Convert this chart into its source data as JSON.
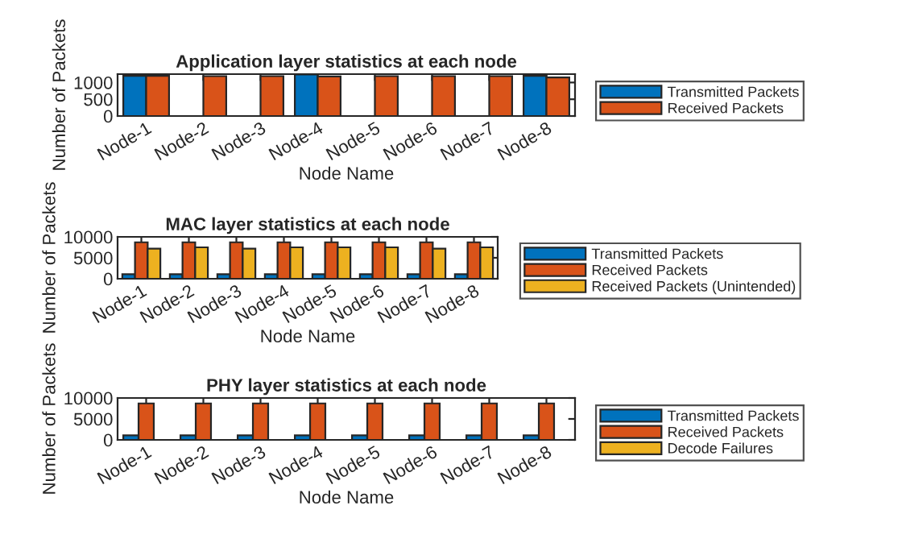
{
  "chart_data": [
    {
      "type": "bar",
      "title": "Application layer statistics at each node",
      "xlabel": "Node Name",
      "ylabel": "Number of Packets",
      "categories": [
        "Node-1",
        "Node-2",
        "Node-3",
        "Node-4",
        "Node-5",
        "Node-6",
        "Node-7",
        "Node-8"
      ],
      "ylim": [
        0,
        1250
      ],
      "yticks": [
        0,
        500,
        1000
      ],
      "legend": "right",
      "grid": false,
      "series": [
        {
          "name": "Transmitted Packets",
          "color": "#0072bd",
          "values": [
            1200,
            null,
            null,
            1240,
            null,
            null,
            null,
            1200
          ]
        },
        {
          "name": "Received Packets",
          "color": "#d95319",
          "values": [
            1200,
            1190,
            1190,
            1180,
            1190,
            1190,
            1190,
            1150
          ]
        }
      ]
    },
    {
      "type": "bar",
      "title": "MAC layer statistics at each node",
      "xlabel": "Node Name",
      "ylabel": "Number of Packets",
      "categories": [
        "Node-1",
        "Node-2",
        "Node-3",
        "Node-4",
        "Node-5",
        "Node-6",
        "Node-7",
        "Node-8"
      ],
      "ylim": [
        0,
        10000
      ],
      "yticks": [
        0,
        5000,
        10000
      ],
      "legend": "right",
      "grid": false,
      "series": [
        {
          "name": "Transmitted Packets",
          "color": "#0072bd",
          "values": [
            1100,
            1100,
            1100,
            1100,
            1100,
            1100,
            1100,
            1100
          ]
        },
        {
          "name": "Received Packets",
          "color": "#d95319",
          "values": [
            8700,
            8700,
            8700,
            8700,
            8700,
            8700,
            8700,
            8700
          ]
        },
        {
          "name": "Received Packets (Unintended)",
          "color": "#edb120",
          "values": [
            7200,
            7500,
            7200,
            7500,
            7500,
            7500,
            7200,
            7500
          ]
        }
      ]
    },
    {
      "type": "bar",
      "title": "PHY layer statistics at each node",
      "xlabel": "Node Name",
      "ylabel": "Number of Packets",
      "categories": [
        "Node-1",
        "Node-2",
        "Node-3",
        "Node-4",
        "Node-5",
        "Node-6",
        "Node-7",
        "Node-8"
      ],
      "ylim": [
        0,
        10000
      ],
      "yticks": [
        0,
        5000,
        10000
      ],
      "legend": "right",
      "grid": false,
      "series": [
        {
          "name": "Transmitted Packets",
          "color": "#0072bd",
          "values": [
            1100,
            1100,
            1100,
            1100,
            1100,
            1100,
            1100,
            1100
          ]
        },
        {
          "name": "Received Packets",
          "color": "#d95319",
          "values": [
            8700,
            8700,
            8700,
            8700,
            8700,
            8700,
            8700,
            8700
          ]
        },
        {
          "name": "Decode Failures",
          "color": "#edb120",
          "values": [
            null,
            null,
            null,
            null,
            null,
            null,
            null,
            null
          ]
        }
      ]
    }
  ]
}
